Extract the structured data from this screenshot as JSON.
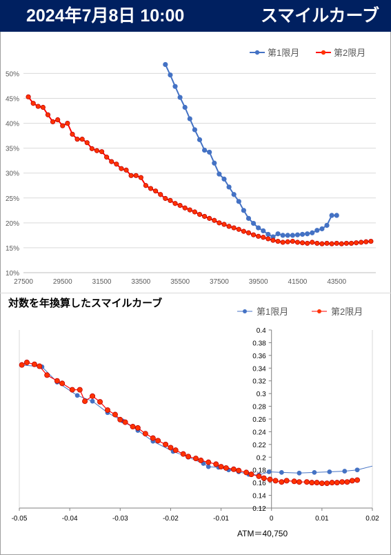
{
  "header": {
    "date_label": "2024年7月8日 10:00",
    "title": "スマイルカーブ"
  },
  "colors": {
    "header_bg": "#002060",
    "series1": "#4472C4",
    "series2": "#FF0000",
    "series2_marker": "#FF3300",
    "grid": "#d9d9d9"
  },
  "chart_data": [
    {
      "type": "line",
      "title": "",
      "xlabel": "",
      "ylabel": "",
      "xlim": [
        27500,
        45500
      ],
      "ylim": [
        0.1,
        0.52
      ],
      "x_ticks": [
        27500,
        29500,
        31500,
        33500,
        35500,
        37500,
        39500,
        41500,
        43500
      ],
      "y_ticks": [
        0.1,
        0.15,
        0.2,
        0.25,
        0.3,
        0.35,
        0.4,
        0.45,
        0.5
      ],
      "y_tick_labels": [
        "10%",
        "15%",
        "20%",
        "25%",
        "30%",
        "35%",
        "40%",
        "45%",
        "50%"
      ],
      "grid": "horizontal",
      "legend": "top-right",
      "series": [
        {
          "name": "第1限月",
          "x": [
            34750,
            35000,
            35250,
            35500,
            35750,
            36000,
            36250,
            36500,
            36750,
            37000,
            37250,
            37500,
            37750,
            38000,
            38250,
            38500,
            38750,
            39000,
            39250,
            39500,
            39750,
            40000,
            40250,
            40500,
            40750,
            41000,
            41250,
            41500,
            41750,
            42000,
            42250,
            42500,
            42750,
            43000,
            43250,
            43500
          ],
          "values": [
            0.518,
            0.497,
            0.474,
            0.452,
            0.432,
            0.409,
            0.387,
            0.367,
            0.346,
            0.342,
            0.32,
            0.298,
            0.288,
            0.272,
            0.257,
            0.243,
            0.225,
            0.209,
            0.199,
            0.19,
            0.184,
            0.177,
            0.172,
            0.178,
            0.175,
            0.175,
            0.175,
            0.176,
            0.177,
            0.178,
            0.18,
            0.185,
            0.188,
            0.195,
            0.215,
            0.215
          ]
        },
        {
          "name": "第2限月",
          "x": [
            27750,
            28000,
            28250,
            28500,
            28750,
            29000,
            29250,
            29500,
            29750,
            30000,
            30250,
            30500,
            30750,
            31000,
            31250,
            31500,
            31750,
            32000,
            32250,
            32500,
            32750,
            33000,
            33250,
            33500,
            33750,
            34000,
            34250,
            34500,
            34750,
            35000,
            35250,
            35500,
            35750,
            36000,
            36250,
            36500,
            36750,
            37000,
            37250,
            37500,
            37750,
            38000,
            38250,
            38500,
            38750,
            39000,
            39250,
            39500,
            39750,
            40000,
            40250,
            40500,
            40750,
            41000,
            41250,
            41500,
            41750,
            42000,
            42250,
            42500,
            42750,
            43000,
            43250,
            43500,
            43750,
            44000,
            44250,
            44500,
            44750,
            45000,
            45250
          ],
          "values": [
            0.453,
            0.44,
            0.434,
            0.432,
            0.417,
            0.403,
            0.407,
            0.395,
            0.4,
            0.378,
            0.368,
            0.368,
            0.361,
            0.349,
            0.345,
            0.343,
            0.332,
            0.323,
            0.318,
            0.309,
            0.306,
            0.295,
            0.295,
            0.291,
            0.275,
            0.269,
            0.264,
            0.257,
            0.249,
            0.245,
            0.239,
            0.235,
            0.23,
            0.226,
            0.222,
            0.217,
            0.213,
            0.209,
            0.205,
            0.2,
            0.197,
            0.193,
            0.19,
            0.187,
            0.183,
            0.18,
            0.176,
            0.173,
            0.171,
            0.168,
            0.165,
            0.163,
            0.161,
            0.162,
            0.163,
            0.161,
            0.16,
            0.159,
            0.161,
            0.159,
            0.158,
            0.159,
            0.158,
            0.159,
            0.158,
            0.159,
            0.159,
            0.16,
            0.161,
            0.162,
            0.163
          ]
        }
      ]
    },
    {
      "type": "scatter",
      "title": "対数を年換算したスマイルカーブ",
      "xlabel": "",
      "ylabel": "",
      "annotation": "ATM＝40,750",
      "xlim": [
        -0.05,
        0.02
      ],
      "ylim": [
        0.12,
        0.4
      ],
      "x_ticks": [
        -0.05,
        -0.04,
        -0.03,
        -0.02,
        -0.01,
        0,
        0.01,
        0.02
      ],
      "x_tick_labels": [
        "-0.05",
        "-0.04",
        "-0.03",
        "-0.02",
        "-0.01",
        "0",
        "0.01",
        "0.02"
      ],
      "y_ticks": [
        0.12,
        0.14,
        0.16,
        0.18,
        0.2,
        0.22,
        0.24,
        0.26,
        0.28,
        0.3,
        0.32,
        0.34,
        0.36,
        0.38,
        0.4
      ],
      "y_tick_labels": [
        "0.12",
        "0.14",
        "0.16",
        "0.18",
        "0.2",
        "0.22",
        "0.24",
        "0.26",
        "0.28",
        "0.3",
        "0.32",
        "0.34",
        "0.36",
        "0.38",
        "0.4"
      ],
      "grid": "none",
      "legend": "top-right",
      "series": [
        {
          "name": "第1限月",
          "x": [
            -0.0495,
            -0.0455,
            -0.0425,
            -0.0385,
            -0.0355,
            -0.0325,
            -0.0295,
            -0.0265,
            -0.0235,
            -0.0195,
            -0.0165,
            -0.0135,
            -0.0125,
            -0.0105,
            -0.0085,
            -0.0065,
            -0.0045,
            -0.0025,
            -0.0005,
            0.002,
            0.0055,
            0.0085,
            0.0115,
            0.0145,
            0.017
          ],
          "values": [
            0.345,
            0.342,
            0.318,
            0.297,
            0.288,
            0.27,
            0.257,
            0.242,
            0.225,
            0.209,
            0.2,
            0.19,
            0.185,
            0.184,
            0.18,
            0.177,
            0.173,
            0.172,
            0.177,
            0.176,
            0.175,
            0.176,
            0.177,
            0.178,
            0.18
          ]
        },
        {
          "name": "第2限月",
          "x": [
            -0.0495,
            -0.0485,
            -0.047,
            -0.046,
            -0.0445,
            -0.0425,
            -0.0415,
            -0.0395,
            -0.038,
            -0.037,
            -0.0355,
            -0.034,
            -0.0325,
            -0.031,
            -0.03,
            -0.029,
            -0.0275,
            -0.0265,
            -0.025,
            -0.0235,
            -0.0225,
            -0.021,
            -0.02,
            -0.019,
            -0.0175,
            -0.0165,
            -0.015,
            -0.014,
            -0.0125,
            -0.011,
            -0.01,
            -0.009,
            -0.0075,
            -0.0065,
            -0.005,
            -0.004,
            -0.0025,
            -0.0015,
            -0.0003,
            0.0008,
            0.002,
            0.003,
            0.0045,
            0.0055,
            0.007,
            0.008,
            0.009,
            0.01,
            0.011,
            0.012,
            0.013,
            0.014,
            0.015,
            0.016,
            0.017
          ],
          "values": [
            0.345,
            0.349,
            0.346,
            0.343,
            0.329,
            0.32,
            0.316,
            0.306,
            0.306,
            0.288,
            0.296,
            0.287,
            0.274,
            0.267,
            0.259,
            0.255,
            0.248,
            0.246,
            0.237,
            0.23,
            0.226,
            0.22,
            0.215,
            0.211,
            0.205,
            0.201,
            0.198,
            0.195,
            0.192,
            0.189,
            0.185,
            0.183,
            0.181,
            0.179,
            0.176,
            0.173,
            0.17,
            0.167,
            0.165,
            0.163,
            0.161,
            0.163,
            0.162,
            0.161,
            0.161,
            0.16,
            0.16,
            0.159,
            0.159,
            0.16,
            0.16,
            0.161,
            0.161,
            0.163,
            0.164
          ]
        }
      ]
    }
  ]
}
